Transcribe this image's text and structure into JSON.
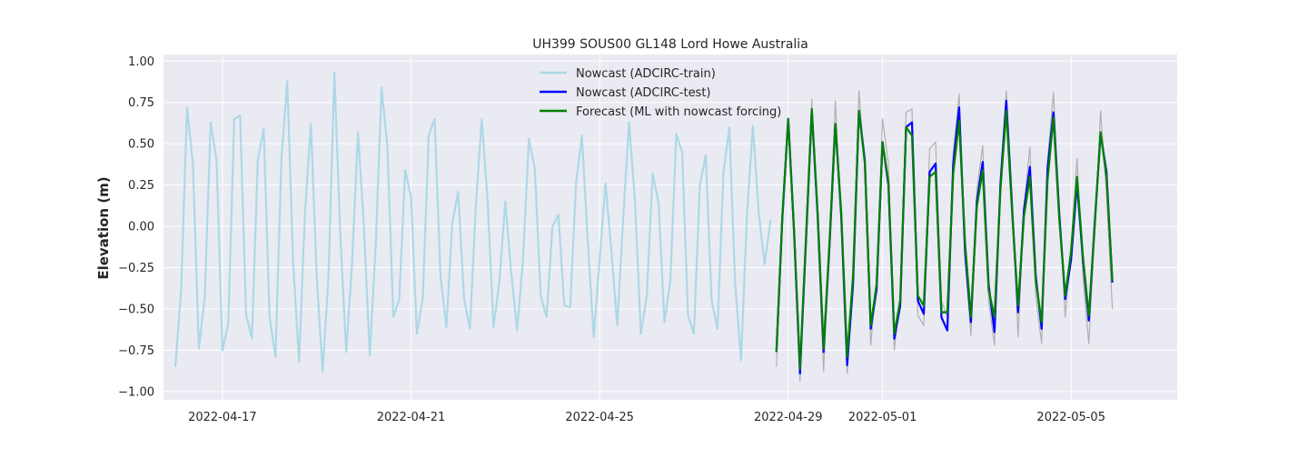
{
  "chart_data": {
    "type": "line",
    "title": "UH399 SOUS00 GL148 Lord Howe Australia",
    "xlabel": "",
    "ylabel": "Elevation (m)",
    "x_tick_labels": [
      "2022-04-17",
      "2022-04-21",
      "2022-04-25",
      "2022-04-29",
      "2022-05-01",
      "2022-05-05"
    ],
    "x_tick_values": [
      "2022-04-17",
      "2022-04-21",
      "2022-04-25",
      "2022-04-29",
      "2022-05-01",
      "2022-05-05"
    ],
    "y_ticks": [
      1.0,
      0.75,
      0.5,
      0.25,
      0.0,
      -0.25,
      -0.5,
      -0.75,
      -1.0
    ],
    "y_tick_labels": [
      "1.00",
      "0.75",
      "0.50",
      "0.25",
      "0.00",
      "−0.25",
      "−0.50",
      "−0.75",
      "−1.00"
    ],
    "xlim": [
      "2022-04-15T18:00",
      "2022-05-07T06:00"
    ],
    "ylim": [
      -1.05,
      1.04
    ],
    "grid": true,
    "legend_position": "top-center",
    "background_color": "#eaeaf2",
    "series": [
      {
        "name": "Nowcast (ADCIRC-train)",
        "color": "#add8e6",
        "x": [
          "2022-04-16T00:00",
          "2022-04-16T03:00",
          "2022-04-16T06:00",
          "2022-04-16T09:00",
          "2022-04-16T12:00",
          "2022-04-16T15:00",
          "2022-04-16T18:00",
          "2022-04-16T21:00",
          "2022-04-17T00:00",
          "2022-04-17T03:00",
          "2022-04-17T06:00",
          "2022-04-17T09:00",
          "2022-04-17T12:00",
          "2022-04-17T15:00",
          "2022-04-17T18:00",
          "2022-04-17T21:00",
          "2022-04-18T00:00",
          "2022-04-18T03:00",
          "2022-04-18T06:00",
          "2022-04-18T09:00",
          "2022-04-18T12:00",
          "2022-04-18T15:00",
          "2022-04-18T18:00",
          "2022-04-18T21:00",
          "2022-04-19T00:00",
          "2022-04-19T03:00",
          "2022-04-19T06:00",
          "2022-04-19T09:00",
          "2022-04-19T12:00",
          "2022-04-19T15:00",
          "2022-04-19T18:00",
          "2022-04-19T21:00",
          "2022-04-20T00:00",
          "2022-04-20T03:00",
          "2022-04-20T06:00",
          "2022-04-20T09:00",
          "2022-04-20T12:00",
          "2022-04-20T15:00",
          "2022-04-20T18:00",
          "2022-04-20T21:00",
          "2022-04-21T00:00",
          "2022-04-21T03:00",
          "2022-04-21T06:00",
          "2022-04-21T09:00",
          "2022-04-21T12:00",
          "2022-04-21T15:00",
          "2022-04-21T18:00",
          "2022-04-21T21:00",
          "2022-04-22T00:00",
          "2022-04-22T03:00",
          "2022-04-22T06:00",
          "2022-04-22T09:00",
          "2022-04-22T12:00",
          "2022-04-22T15:00",
          "2022-04-22T18:00",
          "2022-04-22T21:00",
          "2022-04-23T00:00",
          "2022-04-23T03:00",
          "2022-04-23T06:00",
          "2022-04-23T09:00",
          "2022-04-23T12:00",
          "2022-04-23T15:00",
          "2022-04-23T18:00",
          "2022-04-23T21:00",
          "2022-04-24T00:00",
          "2022-04-24T03:00",
          "2022-04-24T06:00",
          "2022-04-24T09:00",
          "2022-04-24T12:00",
          "2022-04-24T15:00",
          "2022-04-24T18:00",
          "2022-04-24T21:00",
          "2022-04-25T00:00",
          "2022-04-25T03:00",
          "2022-04-25T06:00",
          "2022-04-25T09:00",
          "2022-04-25T12:00",
          "2022-04-25T15:00",
          "2022-04-25T18:00",
          "2022-04-25T21:00",
          "2022-04-26T00:00",
          "2022-04-26T03:00",
          "2022-04-26T06:00",
          "2022-04-26T09:00",
          "2022-04-26T12:00",
          "2022-04-26T15:00",
          "2022-04-26T18:00",
          "2022-04-26T21:00",
          "2022-04-27T00:00",
          "2022-04-27T03:00",
          "2022-04-27T06:00",
          "2022-04-27T09:00",
          "2022-04-27T12:00",
          "2022-04-27T15:00",
          "2022-04-27T18:00",
          "2022-04-27T21:00",
          "2022-04-28T00:00",
          "2022-04-28T03:00",
          "2022-04-28T06:00",
          "2022-04-28T09:00",
          "2022-04-28T12:00",
          "2022-04-28T15:00"
        ],
        "values": [
          -0.85,
          -0.38,
          0.72,
          0.37,
          -0.74,
          -0.43,
          0.63,
          0.4,
          -0.75,
          -0.59,
          0.65,
          0.67,
          -0.53,
          -0.68,
          0.4,
          0.59,
          -0.55,
          -0.79,
          0.4,
          0.88,
          -0.22,
          -0.82,
          0.08,
          0.62,
          -0.3,
          -0.88,
          -0.3,
          0.93,
          -0.05,
          -0.76,
          -0.22,
          0.57,
          0.0,
          -0.78,
          -0.12,
          0.84,
          0.48,
          -0.55,
          -0.44,
          0.34,
          0.18,
          -0.65,
          -0.43,
          0.55,
          0.65,
          -0.3,
          -0.61,
          0.02,
          0.21,
          -0.44,
          -0.62,
          0.13,
          0.65,
          0.15,
          -0.61,
          -0.33,
          0.15,
          -0.28,
          -0.63,
          -0.2,
          0.53,
          0.35,
          -0.42,
          -0.55,
          0.0,
          0.07,
          -0.48,
          -0.49,
          0.26,
          0.55,
          -0.1,
          -0.67,
          -0.2,
          0.26,
          -0.15,
          -0.6,
          0.05,
          0.63,
          0.15,
          -0.65,
          -0.42,
          0.32,
          0.14,
          -0.58,
          -0.33,
          0.56,
          0.45,
          -0.54,
          -0.65,
          0.25,
          0.43,
          -0.45,
          -0.62,
          0.32,
          0.6,
          -0.35,
          -0.81,
          0.07,
          0.61,
          0.08,
          -0.23,
          0.04
        ]
      },
      {
        "name": "Nowcast (ADCIRC-test)",
        "color": "#0000ff",
        "x": [
          "2022-04-28T18:00",
          "2022-04-28T21:00",
          "2022-04-29T00:00",
          "2022-04-29T03:00",
          "2022-04-29T06:00",
          "2022-04-29T09:00",
          "2022-04-29T12:00",
          "2022-04-29T15:00",
          "2022-04-29T18:00",
          "2022-04-29T21:00",
          "2022-04-30T00:00",
          "2022-04-30T03:00",
          "2022-04-30T06:00",
          "2022-04-30T09:00",
          "2022-04-30T12:00",
          "2022-04-30T15:00",
          "2022-04-30T18:00",
          "2022-04-30T21:00",
          "2022-05-01T00:00",
          "2022-05-01T03:00",
          "2022-05-01T06:00",
          "2022-05-01T09:00",
          "2022-05-01T12:00",
          "2022-05-01T15:00",
          "2022-05-01T18:00",
          "2022-05-01T21:00",
          "2022-05-02T00:00",
          "2022-05-02T03:00",
          "2022-05-02T06:00",
          "2022-05-02T09:00",
          "2022-05-02T12:00",
          "2022-05-02T15:00",
          "2022-05-02T18:00",
          "2022-05-02T21:00",
          "2022-05-03T00:00",
          "2022-05-03T03:00",
          "2022-05-03T06:00",
          "2022-05-03T09:00",
          "2022-05-03T12:00",
          "2022-05-03T15:00",
          "2022-05-03T18:00",
          "2022-05-03T21:00",
          "2022-05-04T00:00",
          "2022-05-04T03:00",
          "2022-05-04T06:00",
          "2022-05-04T09:00",
          "2022-05-04T12:00",
          "2022-05-04T15:00",
          "2022-05-04T18:00",
          "2022-05-04T21:00",
          "2022-05-05T00:00",
          "2022-05-05T03:00",
          "2022-05-05T06:00",
          "2022-05-05T09:00",
          "2022-05-05T12:00",
          "2022-05-05T15:00",
          "2022-05-05T18:00",
          "2022-05-05T21:00"
        ],
        "values": [
          -0.76,
          0.05,
          0.65,
          -0.04,
          -0.89,
          -0.1,
          0.7,
          0.06,
          -0.76,
          -0.12,
          0.62,
          0.06,
          -0.84,
          -0.35,
          0.7,
          0.4,
          -0.62,
          -0.38,
          0.51,
          0.25,
          -0.68,
          -0.48,
          0.6,
          0.63,
          -0.45,
          -0.53,
          0.33,
          0.38,
          -0.55,
          -0.63,
          0.38,
          0.72,
          -0.15,
          -0.58,
          0.15,
          0.39,
          -0.35,
          -0.64,
          0.25,
          0.76,
          0.1,
          -0.52,
          0.1,
          0.36,
          -0.3,
          -0.62,
          0.35,
          0.69,
          0.07,
          -0.44,
          -0.2,
          0.26,
          -0.2,
          -0.57,
          0.02,
          0.56,
          0.33,
          -0.34
        ]
      },
      {
        "name": "Forecast (ML with nowcast forcing)",
        "color": "#008000",
        "x": [
          "2022-04-28T18:00",
          "2022-04-28T21:00",
          "2022-04-29T00:00",
          "2022-04-29T03:00",
          "2022-04-29T06:00",
          "2022-04-29T09:00",
          "2022-04-29T12:00",
          "2022-04-29T15:00",
          "2022-04-29T18:00",
          "2022-04-29T21:00",
          "2022-04-30T00:00",
          "2022-04-30T03:00",
          "2022-04-30T06:00",
          "2022-04-30T09:00",
          "2022-04-30T12:00",
          "2022-04-30T15:00",
          "2022-04-30T18:00",
          "2022-04-30T21:00",
          "2022-05-01T00:00",
          "2022-05-01T03:00",
          "2022-05-01T06:00",
          "2022-05-01T09:00",
          "2022-05-01T12:00",
          "2022-05-01T15:00",
          "2022-05-01T18:00",
          "2022-05-01T21:00",
          "2022-05-02T00:00",
          "2022-05-02T03:00",
          "2022-05-02T06:00",
          "2022-05-02T09:00",
          "2022-05-02T12:00",
          "2022-05-02T15:00",
          "2022-05-02T18:00",
          "2022-05-02T21:00",
          "2022-05-03T00:00",
          "2022-05-03T03:00",
          "2022-05-03T06:00",
          "2022-05-03T09:00",
          "2022-05-03T12:00",
          "2022-05-03T15:00",
          "2022-05-03T18:00",
          "2022-05-03T21:00",
          "2022-05-04T00:00",
          "2022-05-04T03:00",
          "2022-05-04T06:00",
          "2022-05-04T09:00",
          "2022-05-04T12:00",
          "2022-05-04T15:00",
          "2022-05-04T18:00",
          "2022-05-04T21:00",
          "2022-05-05T00:00",
          "2022-05-05T03:00",
          "2022-05-05T06:00",
          "2022-05-05T09:00",
          "2022-05-05T12:00",
          "2022-05-05T15:00",
          "2022-05-05T18:00",
          "2022-05-05T21:00"
        ],
        "values": [
          -0.76,
          0.06,
          0.65,
          -0.03,
          -0.86,
          -0.08,
          0.71,
          0.08,
          -0.74,
          -0.1,
          0.62,
          0.08,
          -0.79,
          -0.3,
          0.7,
          0.38,
          -0.6,
          -0.35,
          0.51,
          0.27,
          -0.65,
          -0.45,
          0.6,
          0.55,
          -0.42,
          -0.48,
          0.3,
          0.33,
          -0.52,
          -0.52,
          0.32,
          0.64,
          -0.1,
          -0.55,
          0.12,
          0.34,
          -0.38,
          -0.55,
          0.22,
          0.7,
          0.08,
          -0.48,
          0.06,
          0.3,
          -0.33,
          -0.58,
          0.28,
          0.66,
          0.04,
          -0.42,
          -0.15,
          0.3,
          -0.18,
          -0.54,
          0.0,
          0.57,
          0.3,
          -0.33
        ]
      },
      {
        "name": "",
        "color": "#b0b0b0",
        "x": [
          "2022-04-28T18:00",
          "2022-04-28T21:00",
          "2022-04-29T00:00",
          "2022-04-29T03:00",
          "2022-04-29T06:00",
          "2022-04-29T09:00",
          "2022-04-29T12:00",
          "2022-04-29T15:00",
          "2022-04-29T18:00",
          "2022-04-29T21:00",
          "2022-04-30T00:00",
          "2022-04-30T03:00",
          "2022-04-30T06:00",
          "2022-04-30T09:00",
          "2022-04-30T12:00",
          "2022-04-30T15:00",
          "2022-04-30T18:00",
          "2022-04-30T21:00",
          "2022-05-01T00:00",
          "2022-05-01T03:00",
          "2022-05-01T06:00",
          "2022-05-01T09:00",
          "2022-05-01T12:00",
          "2022-05-01T15:00",
          "2022-05-01T18:00",
          "2022-05-01T21:00",
          "2022-05-02T00:00",
          "2022-05-02T03:00",
          "2022-05-02T06:00",
          "2022-05-02T09:00",
          "2022-05-02T12:00",
          "2022-05-02T15:00",
          "2022-05-02T18:00",
          "2022-05-02T21:00",
          "2022-05-03T00:00",
          "2022-05-03T03:00",
          "2022-05-03T06:00",
          "2022-05-03T09:00",
          "2022-05-03T12:00",
          "2022-05-03T15:00",
          "2022-05-03T18:00",
          "2022-05-03T21:00",
          "2022-05-04T00:00",
          "2022-05-04T03:00",
          "2022-05-04T06:00",
          "2022-05-04T09:00",
          "2022-05-04T12:00",
          "2022-05-04T15:00",
          "2022-05-04T18:00",
          "2022-05-04T21:00",
          "2022-05-05T00:00",
          "2022-05-05T03:00",
          "2022-05-05T06:00",
          "2022-05-05T09:00",
          "2022-05-05T12:00",
          "2022-05-05T15:00",
          "2022-05-05T18:00",
          "2022-05-05T21:00"
        ],
        "values": [
          -0.85,
          0.0,
          0.65,
          -0.1,
          -0.94,
          -0.05,
          0.77,
          0.0,
          -0.88,
          -0.05,
          0.76,
          0.0,
          -0.89,
          -0.3,
          0.82,
          0.35,
          -0.72,
          -0.3,
          0.65,
          0.38,
          -0.75,
          -0.4,
          0.69,
          0.71,
          -0.54,
          -0.6,
          0.47,
          0.51,
          -0.45,
          -0.55,
          0.45,
          0.8,
          -0.2,
          -0.66,
          0.22,
          0.49,
          -0.45,
          -0.72,
          0.3,
          0.82,
          0.18,
          -0.67,
          0.12,
          0.48,
          -0.42,
          -0.71,
          0.4,
          0.81,
          0.1,
          -0.55,
          -0.1,
          0.41,
          -0.3,
          -0.71,
          -0.05,
          0.7,
          0.2,
          -0.5
        ]
      }
    ]
  }
}
